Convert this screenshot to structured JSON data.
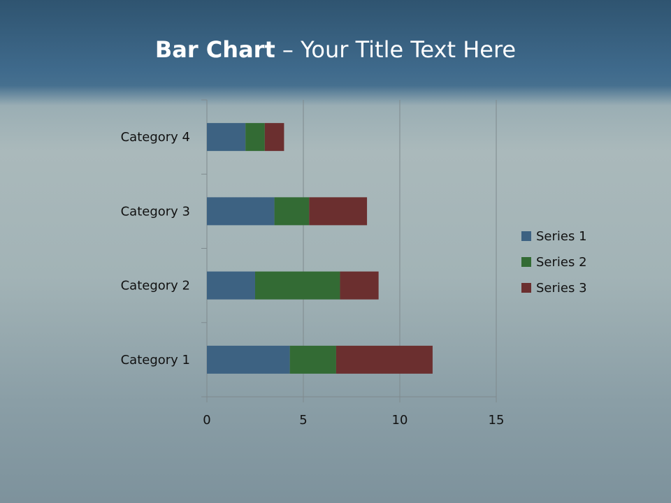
{
  "title": {
    "bold": "Bar Chart",
    "rest": " – Your Title Text Here"
  },
  "chart_data": {
    "type": "bar",
    "orientation": "horizontal",
    "stacked": true,
    "categories": [
      "Category 1",
      "Category 2",
      "Category 3",
      "Category 4"
    ],
    "series": [
      {
        "name": "Series 1",
        "values": [
          4.3,
          2.5,
          3.5,
          2.0
        ],
        "color": "#3d6282"
      },
      {
        "name": "Series 2",
        "values": [
          2.4,
          4.4,
          1.8,
          1.0
        ],
        "color": "#336b34"
      },
      {
        "name": "Series 3",
        "values": [
          5.0,
          2.0,
          3.0,
          1.0
        ],
        "color": "#6b2f2f"
      }
    ],
    "xlim": [
      0,
      15
    ],
    "xticks": [
      0,
      5,
      10,
      15
    ],
    "grid": true,
    "legend": "right"
  }
}
